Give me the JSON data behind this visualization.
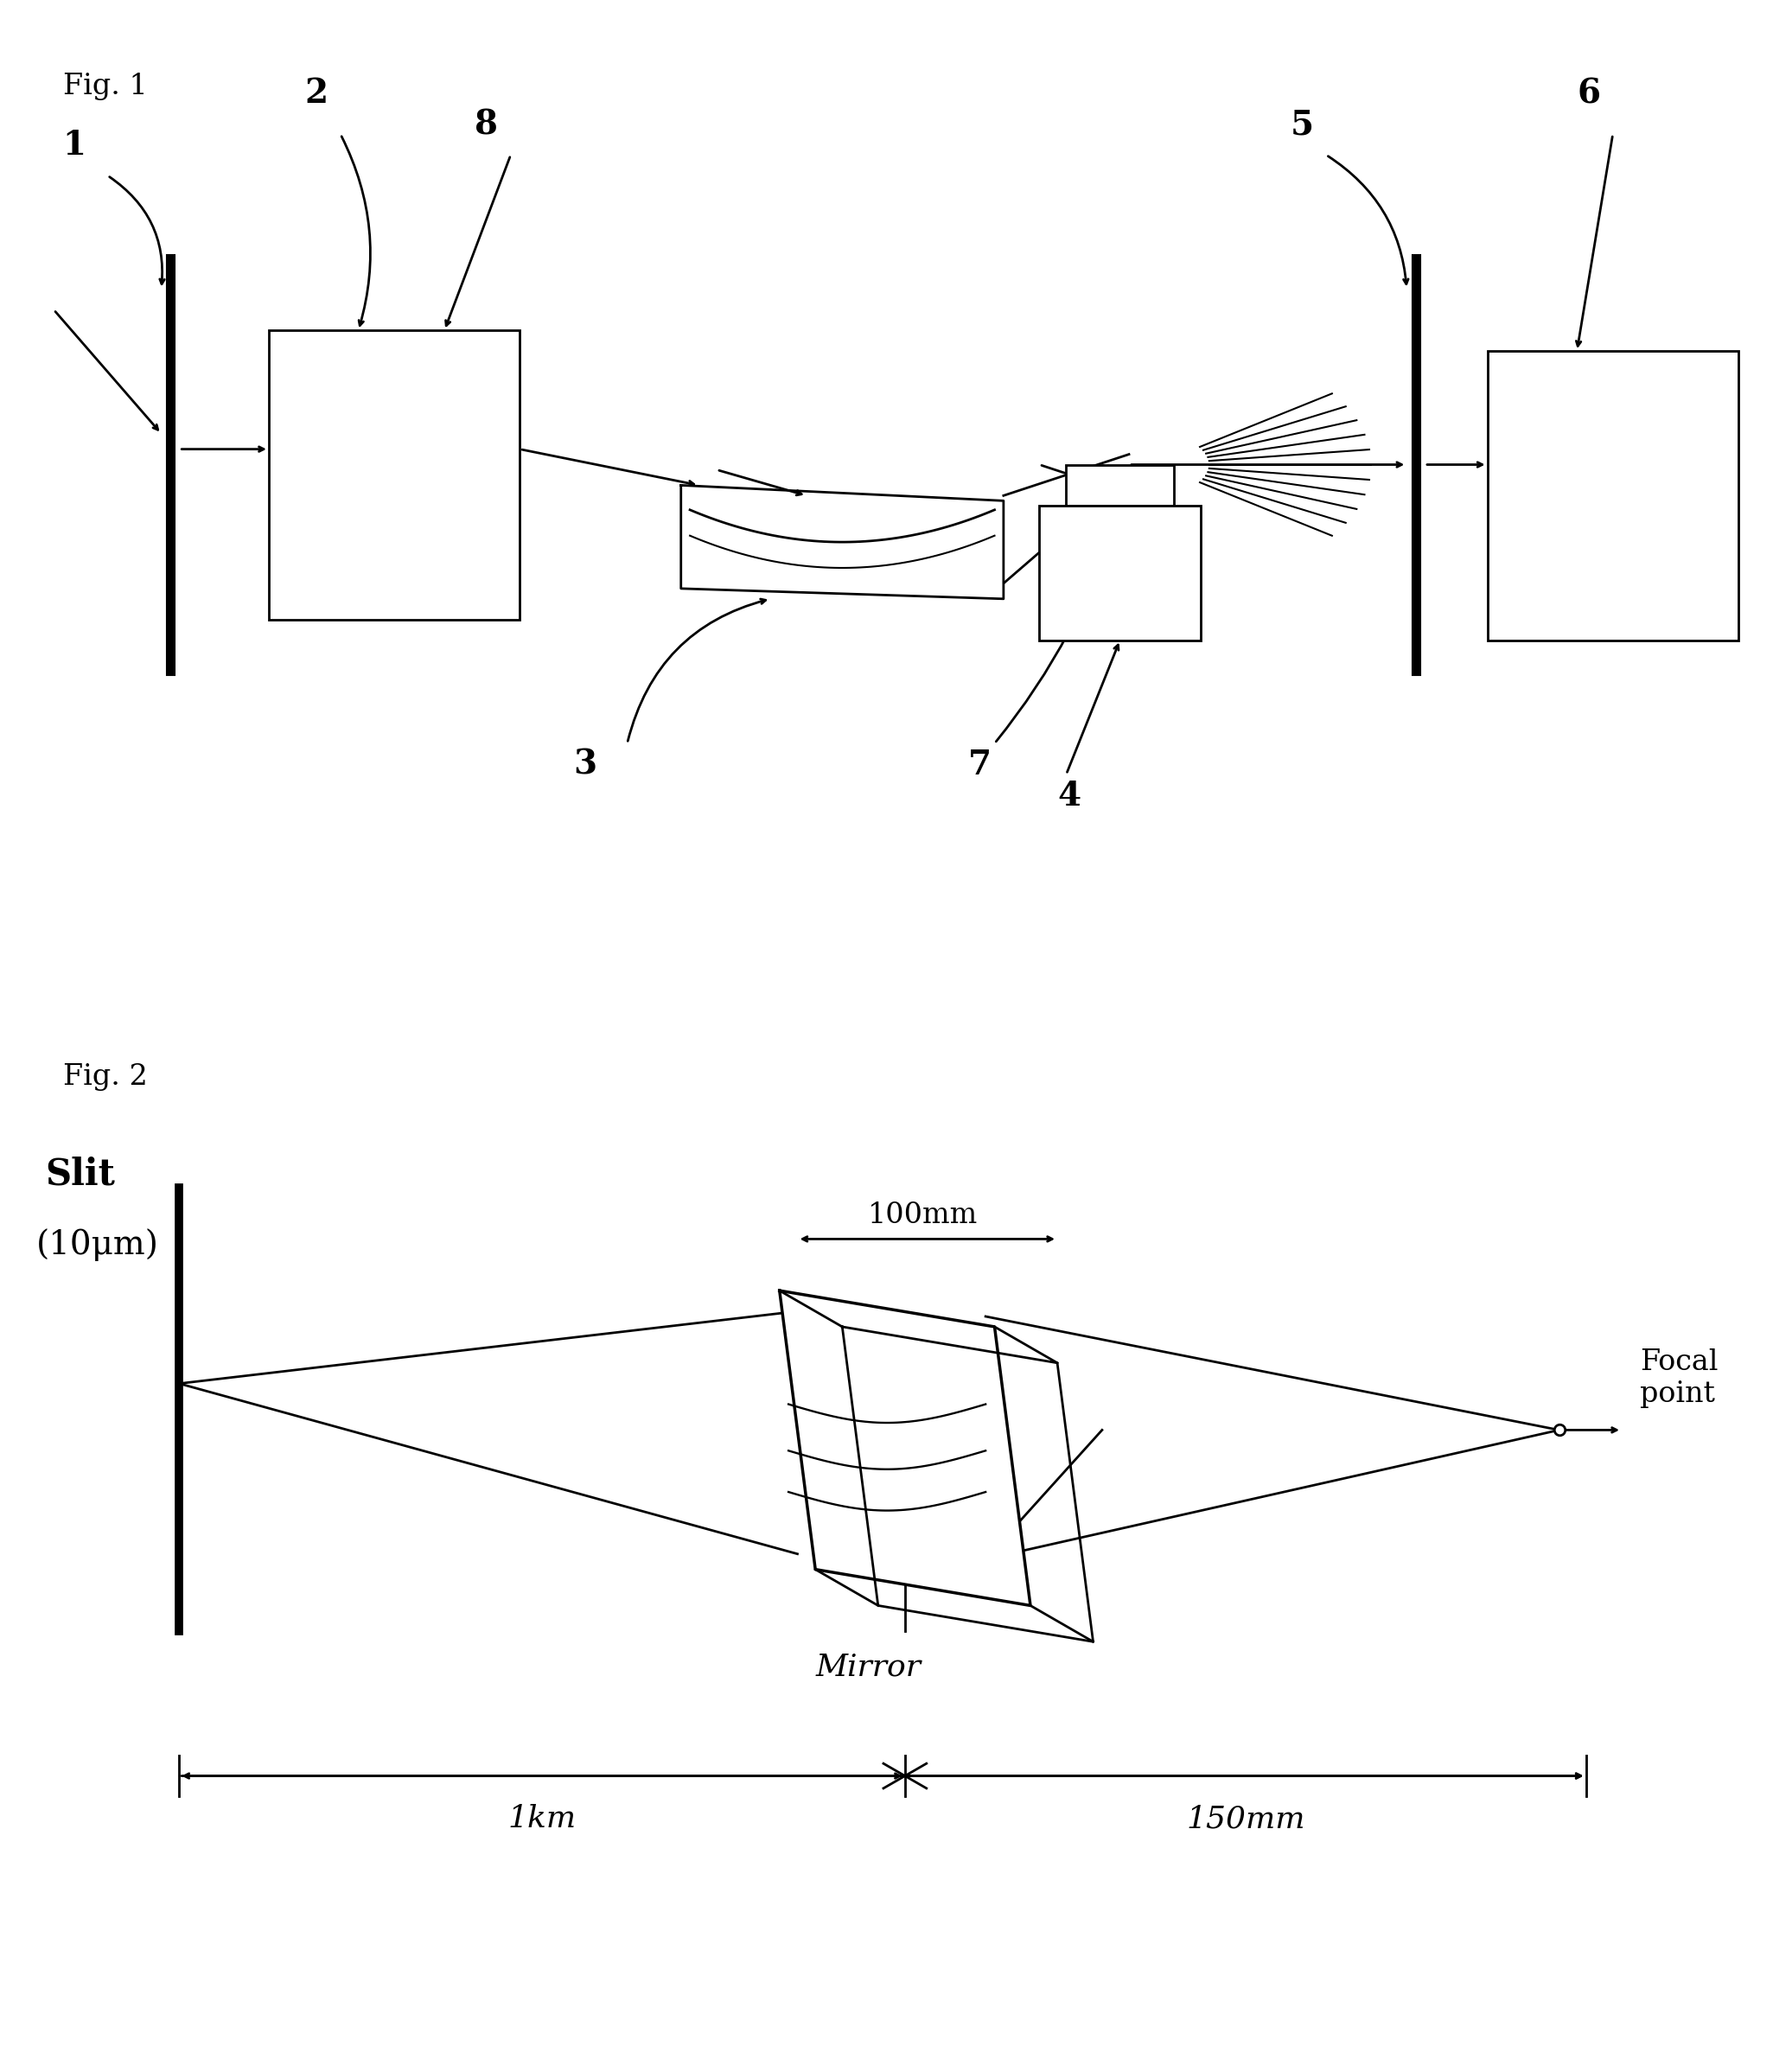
{
  "fig1_label": "Fig. 1",
  "fig2_label": "Fig. 2",
  "bg_color": "#ffffff",
  "line_color": "#000000",
  "slit_label_line1": "Slit",
  "slit_label_line2": "(10μm)",
  "mirror_label": "Mirror",
  "focal_label": "Focal\npoint",
  "dist1_label": "1km",
  "dist2_label": "100mm",
  "dist3_label": "150mm"
}
